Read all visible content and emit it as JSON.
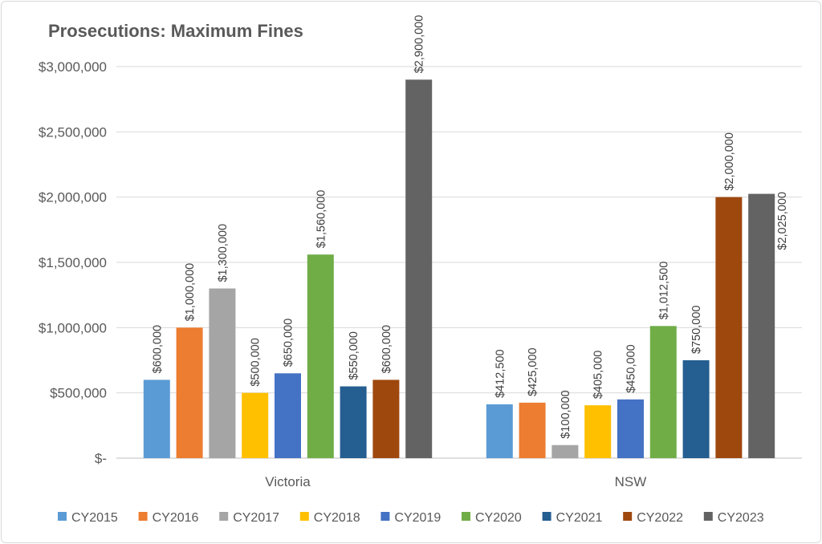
{
  "chart_data": {
    "type": "bar",
    "title": "Prosecutions: Maximum Fines",
    "xlabel": "",
    "ylabel": "",
    "ylim": [
      0,
      3000000
    ],
    "y_ticks": [
      0,
      500000,
      1000000,
      1500000,
      2000000,
      2500000,
      3000000
    ],
    "y_tick_labels": [
      "$-",
      "$500,000",
      "$1,000,000",
      "$1,500,000",
      "$2,000,000",
      "$2,500,000",
      "$3,000,000"
    ],
    "grid": true,
    "legend_placement": "bottom",
    "categories": [
      "Victoria",
      "NSW"
    ],
    "series": [
      {
        "name": "CY2015",
        "color": "#5B9BD5",
        "values": [
          600000,
          412500
        ],
        "labels": [
          "$600,000",
          "$412,500"
        ]
      },
      {
        "name": "CY2016",
        "color": "#ED7D31",
        "values": [
          1000000,
          425000
        ],
        "labels": [
          "$1,000,000",
          "$425,000"
        ]
      },
      {
        "name": "CY2017",
        "color": "#A5A5A5",
        "values": [
          1300000,
          100000
        ],
        "labels": [
          "$1,300,000",
          "$100,000"
        ]
      },
      {
        "name": "CY2018",
        "color": "#FFC000",
        "values": [
          500000,
          405000
        ],
        "labels": [
          "$500,000",
          "$405,000"
        ]
      },
      {
        "name": "CY2019",
        "color": "#4472C4",
        "values": [
          650000,
          450000
        ],
        "labels": [
          "$650,000",
          "$450,000"
        ]
      },
      {
        "name": "CY2020",
        "color": "#70AD47",
        "values": [
          1560000,
          1012500
        ],
        "labels": [
          "$1,560,000",
          "$1,012,500"
        ]
      },
      {
        "name": "CY2021",
        "color": "#255E91",
        "values": [
          550000,
          750000
        ],
        "labels": [
          "$550,000",
          "$750,000"
        ]
      },
      {
        "name": "CY2022",
        "color": "#9E480E",
        "values": [
          600000,
          2000000
        ],
        "labels": [
          "$600,000",
          "$2,000,000"
        ]
      },
      {
        "name": "CY2023",
        "color": "#636363",
        "values": [
          2900000,
          2025000
        ],
        "labels": [
          "$2,900,000",
          "$2,025,000"
        ]
      }
    ]
  }
}
